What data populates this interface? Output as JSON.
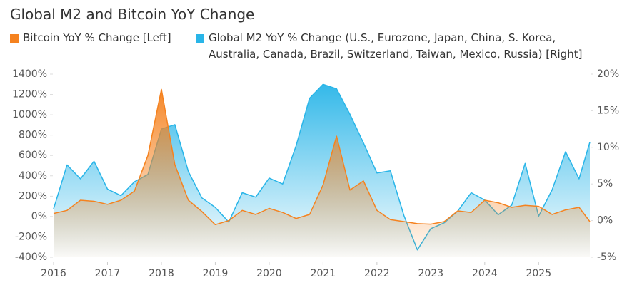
{
  "chart_data": {
    "type": "area",
    "title": "Global M2 and Bitcoin YoY Change",
    "x": [
      2016,
      2016.25,
      2016.5,
      2016.75,
      2017,
      2017.25,
      2017.5,
      2017.75,
      2018,
      2018.25,
      2018.5,
      2018.75,
      2019,
      2019.25,
      2019.5,
      2019.75,
      2020,
      2020.25,
      2020.5,
      2020.75,
      2021,
      2021.25,
      2021.5,
      2021.75,
      2022,
      2022.25,
      2022.5,
      2022.75,
      2023,
      2023.25,
      2023.5,
      2023.75,
      2024,
      2024.25,
      2024.5,
      2024.75,
      2025,
      2025.25,
      2025.5,
      2025.75,
      2025.95
    ],
    "series": [
      {
        "name": "Global M2 YoY % Change (U.S., Eurozone, Japan, China, S. Korea, Australia, Canada, Brazil, Switzerland, Taiwan, Mexico, Russia) [Right]",
        "color": "#29b5e8",
        "axis": "y2",
        "values": [
          1.6,
          7.6,
          5.7,
          8.1,
          4.3,
          3.4,
          5.3,
          6.3,
          12.5,
          13.1,
          6.7,
          3.1,
          1.8,
          -0.2,
          3.8,
          3.2,
          5.8,
          5.0,
          10.2,
          16.7,
          18.6,
          18.0,
          14.5,
          10.6,
          6.5,
          6.8,
          0.7,
          -4.0,
          -1.1,
          -0.3,
          1.3,
          3.8,
          2.8,
          0.8,
          2.1,
          7.8,
          0.6,
          4.2,
          9.4,
          5.7,
          10.7
        ]
      },
      {
        "name": "Bitcoin YoY % Change [Left]",
        "color": "#f5821f",
        "values": [
          30,
          60,
          160,
          150,
          120,
          160,
          250,
          600,
          1250,
          510,
          160,
          50,
          -80,
          -40,
          60,
          20,
          80,
          40,
          -20,
          20,
          310,
          790,
          260,
          350,
          60,
          -30,
          -50,
          -70,
          -75,
          -50,
          55,
          40,
          160,
          135,
          90,
          110,
          100,
          20,
          65,
          90,
          -50
        ]
      }
    ],
    "xlim": [
      2016,
      2025.95
    ],
    "xticks": [
      2016,
      2017,
      2018,
      2019,
      2020,
      2021,
      2022,
      2023,
      2024,
      2025
    ],
    "ylim": [
      -400,
      1400
    ],
    "yticks": [
      {
        "value": -400,
        "label": "-400%"
      },
      {
        "value": -200,
        "label": "-200%"
      },
      {
        "value": 0,
        "label": "0%"
      },
      {
        "value": 200,
        "label": "200%"
      },
      {
        "value": 400,
        "label": "400%"
      },
      {
        "value": 600,
        "label": "600%"
      },
      {
        "value": 800,
        "label": "800%"
      },
      {
        "value": 1000,
        "label": "1000%"
      },
      {
        "value": 1200,
        "label": "1200%"
      },
      {
        "value": 1400,
        "label": "1400%"
      }
    ],
    "y2lim": [
      -5,
      20
    ],
    "y2ticks": [
      {
        "value": -5,
        "label": "-5%"
      },
      {
        "value": 0,
        "label": "0%"
      },
      {
        "value": 5,
        "label": "5%"
      },
      {
        "value": 10,
        "label": "10%"
      },
      {
        "value": 15,
        "label": "15%"
      },
      {
        "value": 20,
        "label": "20%"
      }
    ],
    "grid": false
  }
}
